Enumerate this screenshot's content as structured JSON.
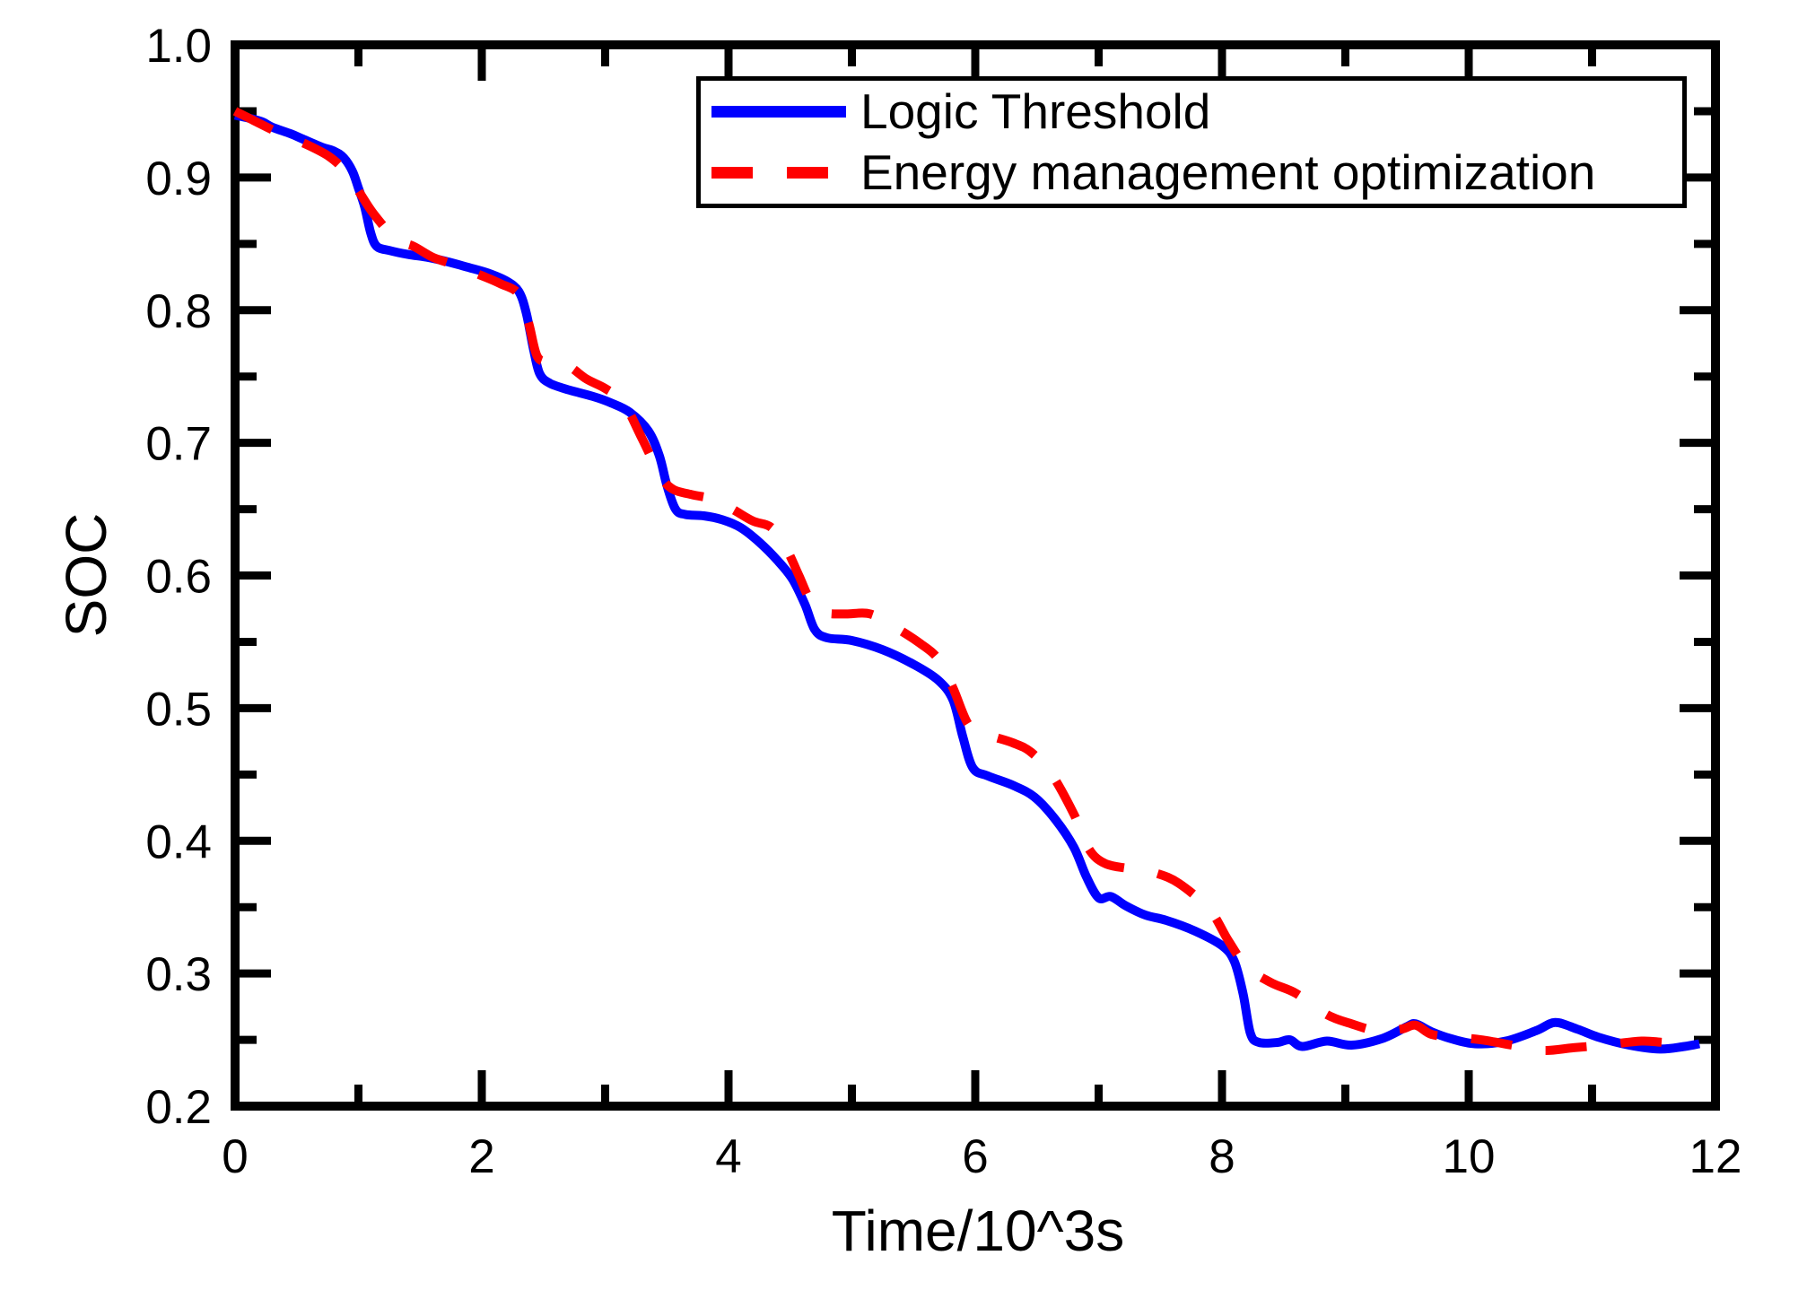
{
  "figure": {
    "background": "#ffffff",
    "axis_color": "#000000",
    "text_color": "#000000"
  },
  "chart_data": {
    "type": "line",
    "title": "",
    "xlabel": "Time/10^3s",
    "ylabel": "SOC",
    "xlim": [
      0,
      12
    ],
    "ylim": [
      0.2,
      1.0
    ],
    "grid": false,
    "legend_position": "top-center-inside",
    "x_ticks": [
      0,
      2,
      4,
      6,
      8,
      10,
      12
    ],
    "x_tick_labels": [
      "0",
      "2",
      "4",
      "6",
      "8",
      "10",
      "12"
    ],
    "x_minor_ticks": [
      1,
      3,
      5,
      7,
      9,
      11
    ],
    "y_ticks": [
      0.2,
      0.3,
      0.4,
      0.5,
      0.6,
      0.7,
      0.8,
      0.9,
      1.0
    ],
    "y_tick_labels": [
      "0.2",
      "0.3",
      "0.4",
      "0.5",
      "0.6",
      "0.7",
      "0.8",
      "0.9",
      "1.0"
    ],
    "y_minor_ticks": [
      0.25,
      0.35,
      0.45,
      0.55,
      0.65,
      0.75,
      0.85,
      0.95
    ],
    "series": [
      {
        "name": "Logic Threshold",
        "color": "#0000ff",
        "style": "solid",
        "dash": null,
        "points": [
          [
            0.0,
            0.947
          ],
          [
            0.1,
            0.945
          ],
          [
            0.22,
            0.942
          ],
          [
            0.3,
            0.938
          ],
          [
            0.45,
            0.933
          ],
          [
            0.55,
            0.929
          ],
          [
            0.7,
            0.923
          ],
          [
            0.8,
            0.92
          ],
          [
            0.88,
            0.915
          ],
          [
            0.95,
            0.905
          ],
          [
            1.0,
            0.892
          ],
          [
            1.05,
            0.878
          ],
          [
            1.1,
            0.858
          ],
          [
            1.15,
            0.848
          ],
          [
            1.25,
            0.845
          ],
          [
            1.4,
            0.842
          ],
          [
            1.55,
            0.84
          ],
          [
            1.7,
            0.837
          ],
          [
            1.9,
            0.832
          ],
          [
            2.05,
            0.828
          ],
          [
            2.2,
            0.822
          ],
          [
            2.3,
            0.814
          ],
          [
            2.36,
            0.798
          ],
          [
            2.42,
            0.77
          ],
          [
            2.47,
            0.752
          ],
          [
            2.55,
            0.745
          ],
          [
            2.7,
            0.74
          ],
          [
            2.9,
            0.735
          ],
          [
            3.05,
            0.73
          ],
          [
            3.2,
            0.723
          ],
          [
            3.35,
            0.709
          ],
          [
            3.44,
            0.69
          ],
          [
            3.5,
            0.668
          ],
          [
            3.57,
            0.65
          ],
          [
            3.65,
            0.646
          ],
          [
            3.8,
            0.645
          ],
          [
            3.95,
            0.642
          ],
          [
            4.1,
            0.636
          ],
          [
            4.25,
            0.625
          ],
          [
            4.4,
            0.611
          ],
          [
            4.52,
            0.597
          ],
          [
            4.62,
            0.578
          ],
          [
            4.7,
            0.559
          ],
          [
            4.8,
            0.553
          ],
          [
            5.0,
            0.551
          ],
          [
            5.25,
            0.544
          ],
          [
            5.5,
            0.533
          ],
          [
            5.7,
            0.521
          ],
          [
            5.82,
            0.506
          ],
          [
            5.9,
            0.478
          ],
          [
            5.98,
            0.455
          ],
          [
            6.1,
            0.449
          ],
          [
            6.3,
            0.442
          ],
          [
            6.48,
            0.433
          ],
          [
            6.65,
            0.416
          ],
          [
            6.8,
            0.395
          ],
          [
            6.9,
            0.373
          ],
          [
            7.0,
            0.357
          ],
          [
            7.1,
            0.358
          ],
          [
            7.22,
            0.351
          ],
          [
            7.38,
            0.344
          ],
          [
            7.55,
            0.34
          ],
          [
            7.78,
            0.332
          ],
          [
            8.0,
            0.321
          ],
          [
            8.1,
            0.309
          ],
          [
            8.17,
            0.285
          ],
          [
            8.23,
            0.255
          ],
          [
            8.3,
            0.248
          ],
          [
            8.45,
            0.248
          ],
          [
            8.55,
            0.25
          ],
          [
            8.65,
            0.245
          ],
          [
            8.85,
            0.249
          ],
          [
            9.05,
            0.246
          ],
          [
            9.3,
            0.251
          ],
          [
            9.5,
            0.26
          ],
          [
            9.57,
            0.262
          ],
          [
            9.7,
            0.256
          ],
          [
            9.85,
            0.251
          ],
          [
            10.05,
            0.247
          ],
          [
            10.3,
            0.249
          ],
          [
            10.55,
            0.257
          ],
          [
            10.7,
            0.263
          ],
          [
            10.88,
            0.258
          ],
          [
            11.05,
            0.252
          ],
          [
            11.3,
            0.246
          ],
          [
            11.55,
            0.243
          ],
          [
            11.75,
            0.245
          ],
          [
            11.87,
            0.247
          ]
        ]
      },
      {
        "name": "Energy management optimization",
        "color": "#ff0000",
        "style": "dashed",
        "dash": [
          46,
          38
        ],
        "points": [
          [
            0.0,
            0.95
          ],
          [
            0.15,
            0.943
          ],
          [
            0.3,
            0.936
          ],
          [
            0.45,
            0.93
          ],
          [
            0.6,
            0.924
          ],
          [
            0.76,
            0.916
          ],
          [
            0.88,
            0.906
          ],
          [
            1.0,
            0.89
          ],
          [
            1.12,
            0.873
          ],
          [
            1.3,
            0.854
          ],
          [
            1.45,
            0.848
          ],
          [
            1.6,
            0.84
          ],
          [
            1.75,
            0.835
          ],
          [
            2.0,
            0.826
          ],
          [
            2.15,
            0.82
          ],
          [
            2.3,
            0.812
          ],
          [
            2.38,
            0.79
          ],
          [
            2.45,
            0.765
          ],
          [
            2.55,
            0.761
          ],
          [
            2.7,
            0.758
          ],
          [
            2.85,
            0.748
          ],
          [
            3.0,
            0.741
          ],
          [
            3.15,
            0.73
          ],
          [
            3.3,
            0.703
          ],
          [
            3.45,
            0.675
          ],
          [
            3.55,
            0.665
          ],
          [
            3.7,
            0.661
          ],
          [
            3.9,
            0.657
          ],
          [
            4.05,
            0.649
          ],
          [
            4.2,
            0.641
          ],
          [
            4.35,
            0.636
          ],
          [
            4.47,
            0.62
          ],
          [
            4.57,
            0.6
          ],
          [
            4.67,
            0.58
          ],
          [
            4.78,
            0.572
          ],
          [
            4.95,
            0.571
          ],
          [
            5.15,
            0.571
          ],
          [
            5.35,
            0.561
          ],
          [
            5.55,
            0.549
          ],
          [
            5.7,
            0.537
          ],
          [
            5.82,
            0.515
          ],
          [
            5.95,
            0.487
          ],
          [
            6.1,
            0.48
          ],
          [
            6.3,
            0.474
          ],
          [
            6.45,
            0.467
          ],
          [
            6.62,
            0.45
          ],
          [
            6.8,
            0.42
          ],
          [
            6.92,
            0.394
          ],
          [
            7.05,
            0.383
          ],
          [
            7.25,
            0.379
          ],
          [
            7.45,
            0.376
          ],
          [
            7.65,
            0.368
          ],
          [
            7.9,
            0.348
          ],
          [
            8.05,
            0.325
          ],
          [
            8.2,
            0.305
          ],
          [
            8.4,
            0.293
          ],
          [
            8.6,
            0.285
          ],
          [
            8.85,
            0.269
          ],
          [
            9.05,
            0.262
          ],
          [
            9.25,
            0.257
          ],
          [
            9.45,
            0.258
          ],
          [
            9.57,
            0.261
          ],
          [
            9.7,
            0.254
          ],
          [
            9.9,
            0.252
          ],
          [
            10.1,
            0.25
          ],
          [
            10.35,
            0.246
          ],
          [
            10.6,
            0.242
          ],
          [
            10.85,
            0.244
          ],
          [
            11.1,
            0.246
          ],
          [
            11.4,
            0.249
          ],
          [
            11.6,
            0.248
          ],
          [
            11.8,
            0.249
          ]
        ]
      }
    ]
  }
}
